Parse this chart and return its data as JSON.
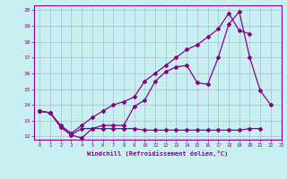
{
  "background_color": "#c8f0f0",
  "line_color": "#880088",
  "xlabel": "Windchill (Refroidissement éolien,°C)",
  "xlim": [
    -0.5,
    23
  ],
  "ylim": [
    11.8,
    20.3
  ],
  "yticks": [
    12,
    13,
    14,
    15,
    16,
    17,
    18,
    19,
    20
  ],
  "xticks": [
    0,
    1,
    2,
    3,
    4,
    5,
    6,
    7,
    8,
    9,
    10,
    11,
    12,
    13,
    14,
    15,
    16,
    17,
    18,
    19,
    20,
    21,
    22,
    23
  ],
  "series1_x": [
    0,
    1,
    2,
    3,
    4,
    5,
    6,
    7,
    8,
    9,
    10,
    11,
    12,
    13,
    14,
    15,
    16,
    17,
    18,
    19,
    20,
    21
  ],
  "series1_y": [
    13.6,
    13.5,
    12.6,
    12.1,
    12.5,
    12.5,
    12.5,
    12.5,
    12.5,
    12.5,
    12.4,
    12.4,
    12.4,
    12.4,
    12.4,
    12.4,
    12.4,
    12.4,
    12.4,
    12.4,
    12.5,
    12.5
  ],
  "series2_x": [
    0,
    1,
    2,
    3,
    4,
    5,
    6,
    7,
    8,
    9,
    10,
    11,
    12,
    13,
    14,
    15,
    16,
    17,
    18,
    19,
    20,
    21,
    22
  ],
  "series2_y": [
    13.6,
    13.5,
    12.6,
    12.1,
    11.9,
    12.5,
    12.7,
    12.7,
    12.7,
    13.9,
    14.3,
    15.5,
    16.1,
    16.4,
    16.5,
    15.4,
    15.3,
    17.0,
    19.1,
    19.9,
    17.0,
    14.9,
    14.0
  ],
  "series3_x": [
    0,
    1,
    2,
    3,
    4,
    5,
    6,
    7,
    8,
    9,
    10,
    11,
    12,
    13,
    14,
    15,
    16,
    17,
    18,
    19,
    20
  ],
  "series3_y": [
    13.6,
    13.5,
    12.7,
    12.2,
    12.7,
    13.2,
    13.6,
    14.0,
    14.2,
    14.5,
    15.5,
    16.0,
    16.5,
    17.0,
    17.5,
    17.8,
    18.3,
    18.8,
    19.8,
    18.7,
    18.5
  ]
}
